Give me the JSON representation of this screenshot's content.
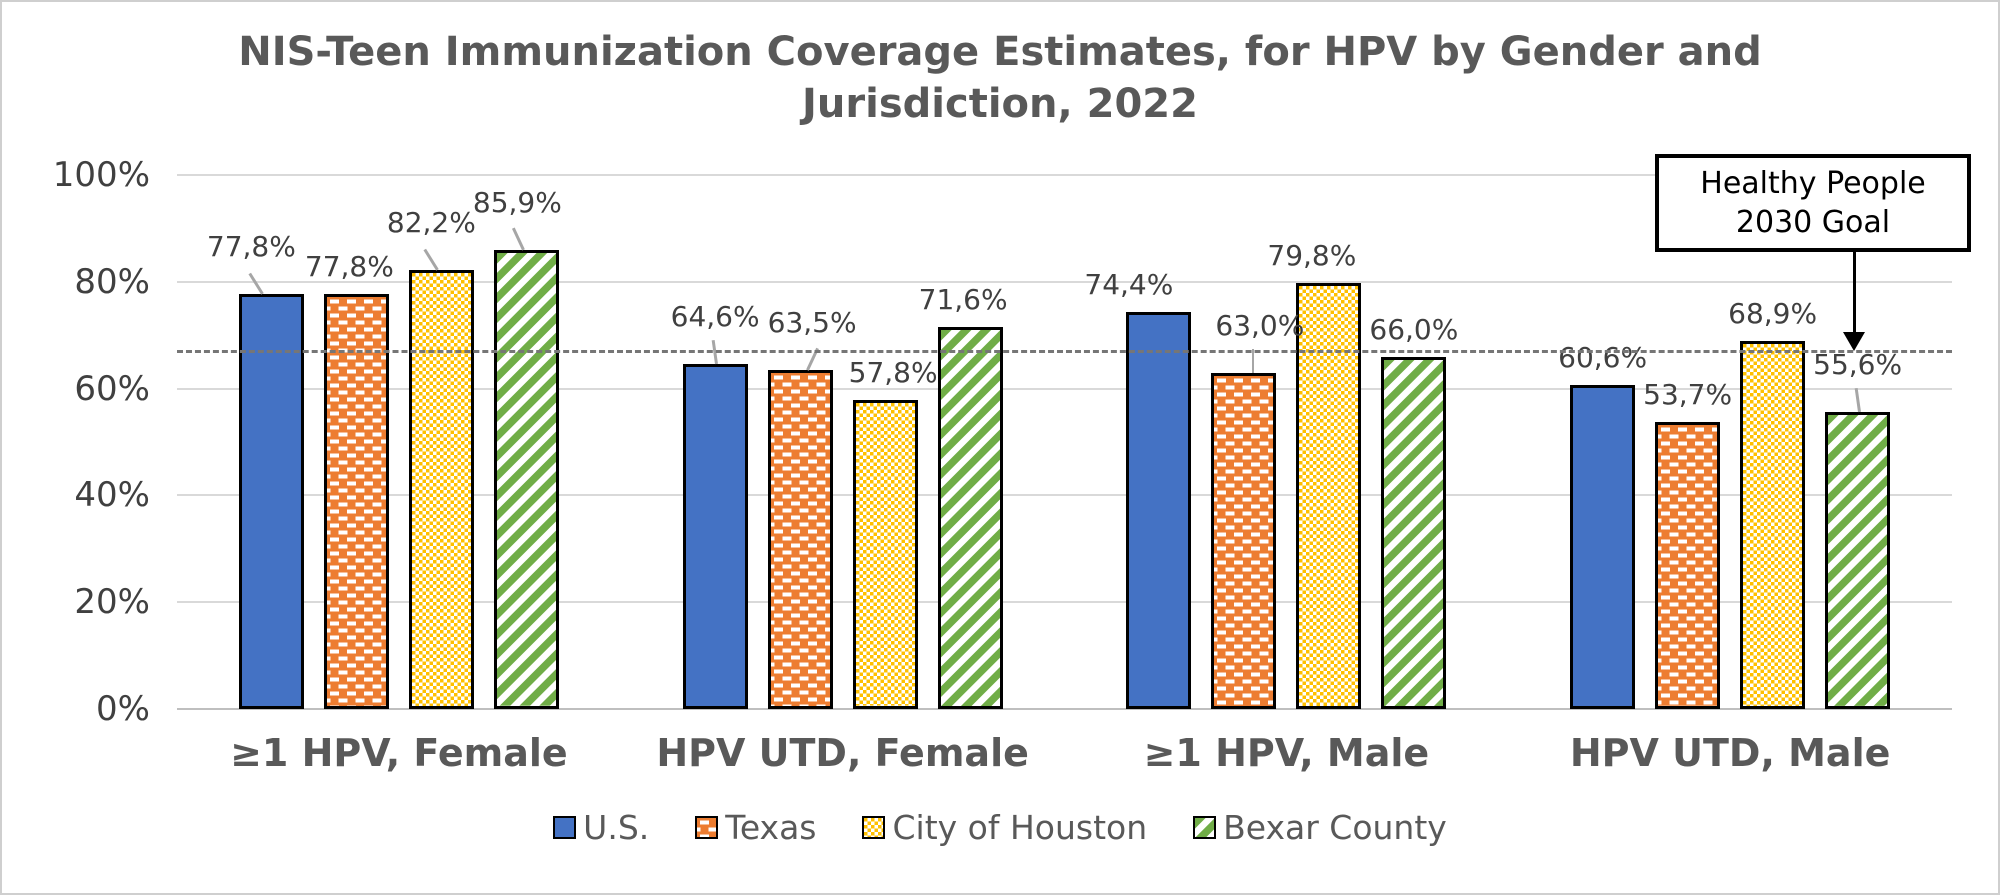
{
  "chart_data": {
    "type": "bar",
    "title": {
      "line1": "NIS-Teen Immunization Coverage Estimates, for HPV by Gender and",
      "line2": "Jurisdiction, 2022"
    },
    "categories": [
      "≥1 HPV, Female",
      "HPV UTD, Female",
      "≥1 HPV, Male",
      "HPV UTD, Male"
    ],
    "series": [
      {
        "name": "U.S.",
        "color": "#4472C4",
        "pattern": "solid",
        "values": [
          77.8,
          64.6,
          74.4,
          60.6
        ],
        "labels": [
          "77,8%",
          "64,6%",
          "74,4%",
          "60,6%"
        ]
      },
      {
        "name": "Texas",
        "color": "#ED7D31",
        "pattern": "brick-dash",
        "values": [
          77.8,
          63.5,
          63.0,
          53.7
        ],
        "labels": [
          "77,8%",
          "63,5%",
          "63,0%",
          "53,7%"
        ]
      },
      {
        "name": "City of Houston",
        "color": "#FFC000",
        "pattern": "fine-check",
        "values": [
          82.2,
          57.8,
          79.8,
          68.9
        ],
        "labels": [
          "82,2%",
          "57,8%",
          "79,8%",
          "68,9%"
        ]
      },
      {
        "name": "Bexar County",
        "color": "#70AD47",
        "pattern": "diag-stripe",
        "values": [
          85.9,
          71.6,
          66.0,
          55.6
        ],
        "labels": [
          "85,9%",
          "71,6%",
          "66,0%",
          "55,6%"
        ]
      }
    ],
    "y_axis": {
      "min": 0,
      "max": 100,
      "tick_step": 20,
      "ticks": [
        "0%",
        "20%",
        "40%",
        "60%",
        "80%",
        "100%"
      ]
    },
    "goal_line": {
      "value": 67,
      "style": "dashed",
      "label_line1": "Healthy People",
      "label_line2": "2030 Goal"
    },
    "legend_position": "bottom",
    "grid": true
  },
  "colors": {
    "title_text": "#595959",
    "axis_text": "#404040",
    "gridline": "#D9D9D9",
    "bar_border": "#000000",
    "goal_line": "#767676"
  }
}
